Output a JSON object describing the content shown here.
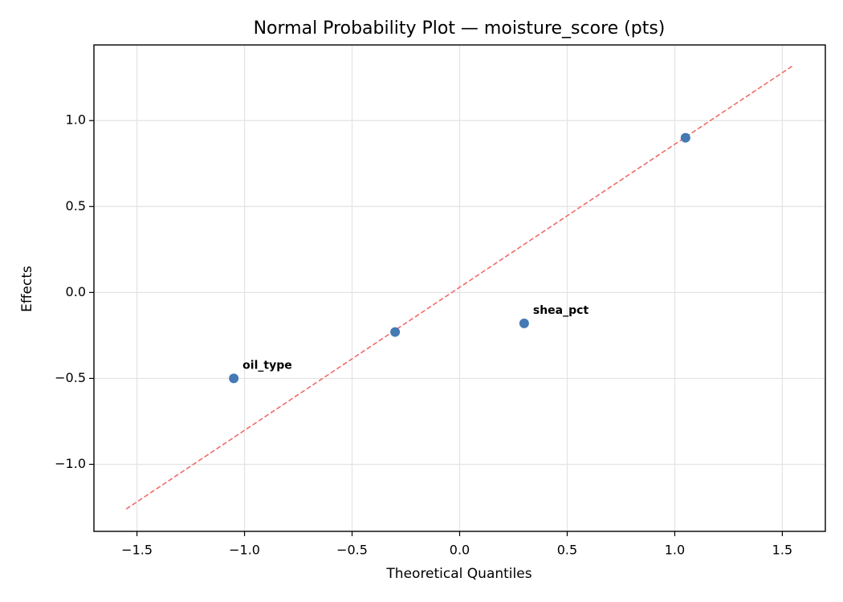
{
  "chart_data": {
    "type": "scatter",
    "title": "Normal Probability Plot — moisture_score (pts)",
    "x_label": "Theoretical Quantiles",
    "y_label": "Effects",
    "series": [
      {
        "color": "#4479b4",
        "x": [
          -1.05,
          -0.3,
          0.3,
          1.05
        ],
        "values": [
          -0.5,
          -0.23,
          -0.18,
          0.9
        ],
        "point_labels": [
          "oil_type",
          null,
          "shea_pct",
          null
        ],
        "point_label_color": "#ff0000"
      },
      {
        "type": "line",
        "color": "#f26b6b",
        "dashed": true,
        "x": [
          -1.55,
          1.55
        ],
        "values": [
          -1.26,
          1.32
        ]
      }
    ],
    "xlim": [
      -1.7,
      1.7
    ],
    "ylim": [
      -1.39,
      1.44
    ],
    "xticks": [
      {
        "value": -1.5,
        "label": "−1.5"
      },
      {
        "value": -1,
        "label": "−1.0"
      },
      {
        "value": -0.5,
        "label": "−0.5"
      },
      {
        "value": 0,
        "label": "0.0"
      },
      0.5,
      {
        "value": 1,
        "label": "1.0"
      },
      1.5
    ],
    "yticks": [
      {
        "value": -1,
        "label": "−1.0"
      },
      {
        "value": -0.5,
        "label": "−0.5"
      },
      {
        "value": 0,
        "label": "0.0"
      },
      0.5,
      {
        "value": 1,
        "label": "1.0"
      }
    ],
    "grid": true
  }
}
